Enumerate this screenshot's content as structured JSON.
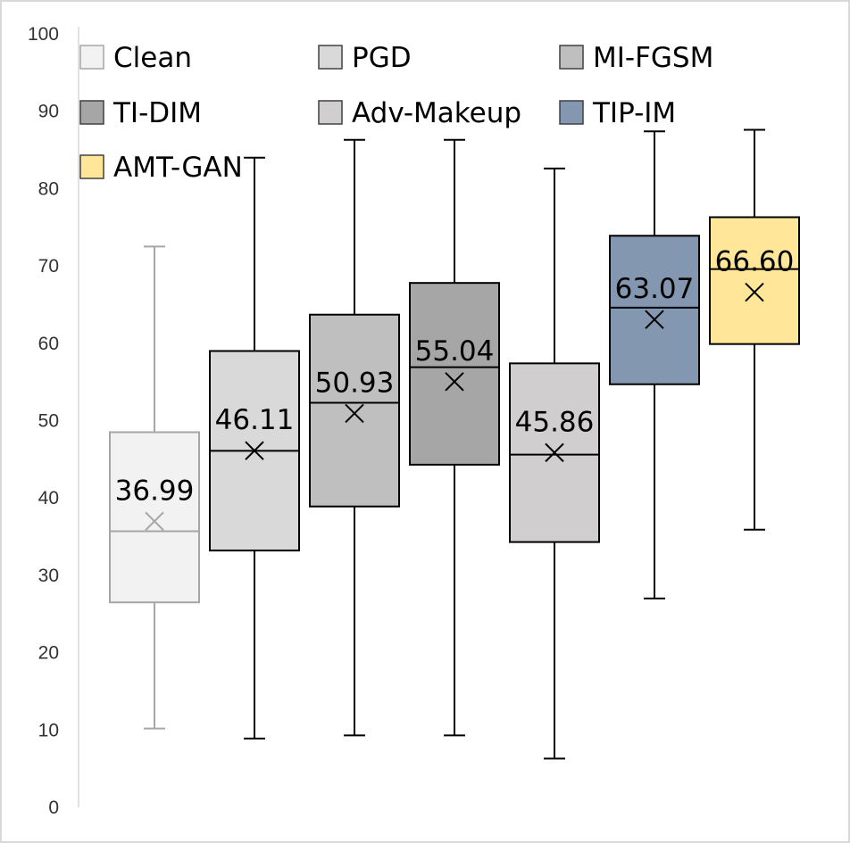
{
  "chart_data": {
    "type": "box",
    "title": "",
    "xlabel": "",
    "ylabel": "",
    "ylim": [
      0,
      100
    ],
    "yticks": [
      0,
      10,
      20,
      30,
      40,
      50,
      60,
      70,
      80,
      90,
      100
    ],
    "grid": false,
    "legend_position": "top",
    "series": [
      {
        "name": "Clean",
        "color": "#f2f2f2",
        "stroke": "#a6a6a6",
        "min": 10.2,
        "q1": 26.5,
        "median": 35.7,
        "q3": 48.5,
        "max": 72.5,
        "mean": 36.99,
        "mean_label": "36.99"
      },
      {
        "name": "PGD",
        "color": "#d9d9d9",
        "stroke": "#000000",
        "min": 8.9,
        "q1": 33.2,
        "median": 46.1,
        "q3": 59.0,
        "max": 84.0,
        "mean": 46.11,
        "mean_label": "46.11"
      },
      {
        "name": "MI-FGSM",
        "color": "#bfbfbf",
        "stroke": "#000000",
        "min": 9.3,
        "q1": 38.9,
        "median": 52.3,
        "q3": 63.7,
        "max": 86.3,
        "mean": 50.93,
        "mean_label": "50.93"
      },
      {
        "name": "TI-DIM",
        "color": "#a6a6a6",
        "stroke": "#000000",
        "min": 9.3,
        "q1": 44.3,
        "median": 56.9,
        "q3": 67.8,
        "max": 86.3,
        "mean": 55.04,
        "mean_label": "55.04"
      },
      {
        "name": "Adv-Makeup",
        "color": "#d0cece",
        "stroke": "#000000",
        "min": 6.3,
        "q1": 34.3,
        "median": 45.6,
        "q3": 57.4,
        "max": 82.6,
        "mean": 45.86,
        "mean_label": "45.86"
      },
      {
        "name": "TIP-IM",
        "color": "#8497b0",
        "stroke": "#000000",
        "min": 27.0,
        "q1": 54.7,
        "median": 64.6,
        "q3": 73.9,
        "max": 87.4,
        "mean": 63.07,
        "mean_label": "63.07"
      },
      {
        "name": "AMT-GAN",
        "color": "#ffe699",
        "stroke": "#000000",
        "min": 35.9,
        "q1": 59.9,
        "median": 69.6,
        "q3": 76.3,
        "max": 87.6,
        "mean": 66.6,
        "mean_label": "66.60"
      }
    ]
  }
}
